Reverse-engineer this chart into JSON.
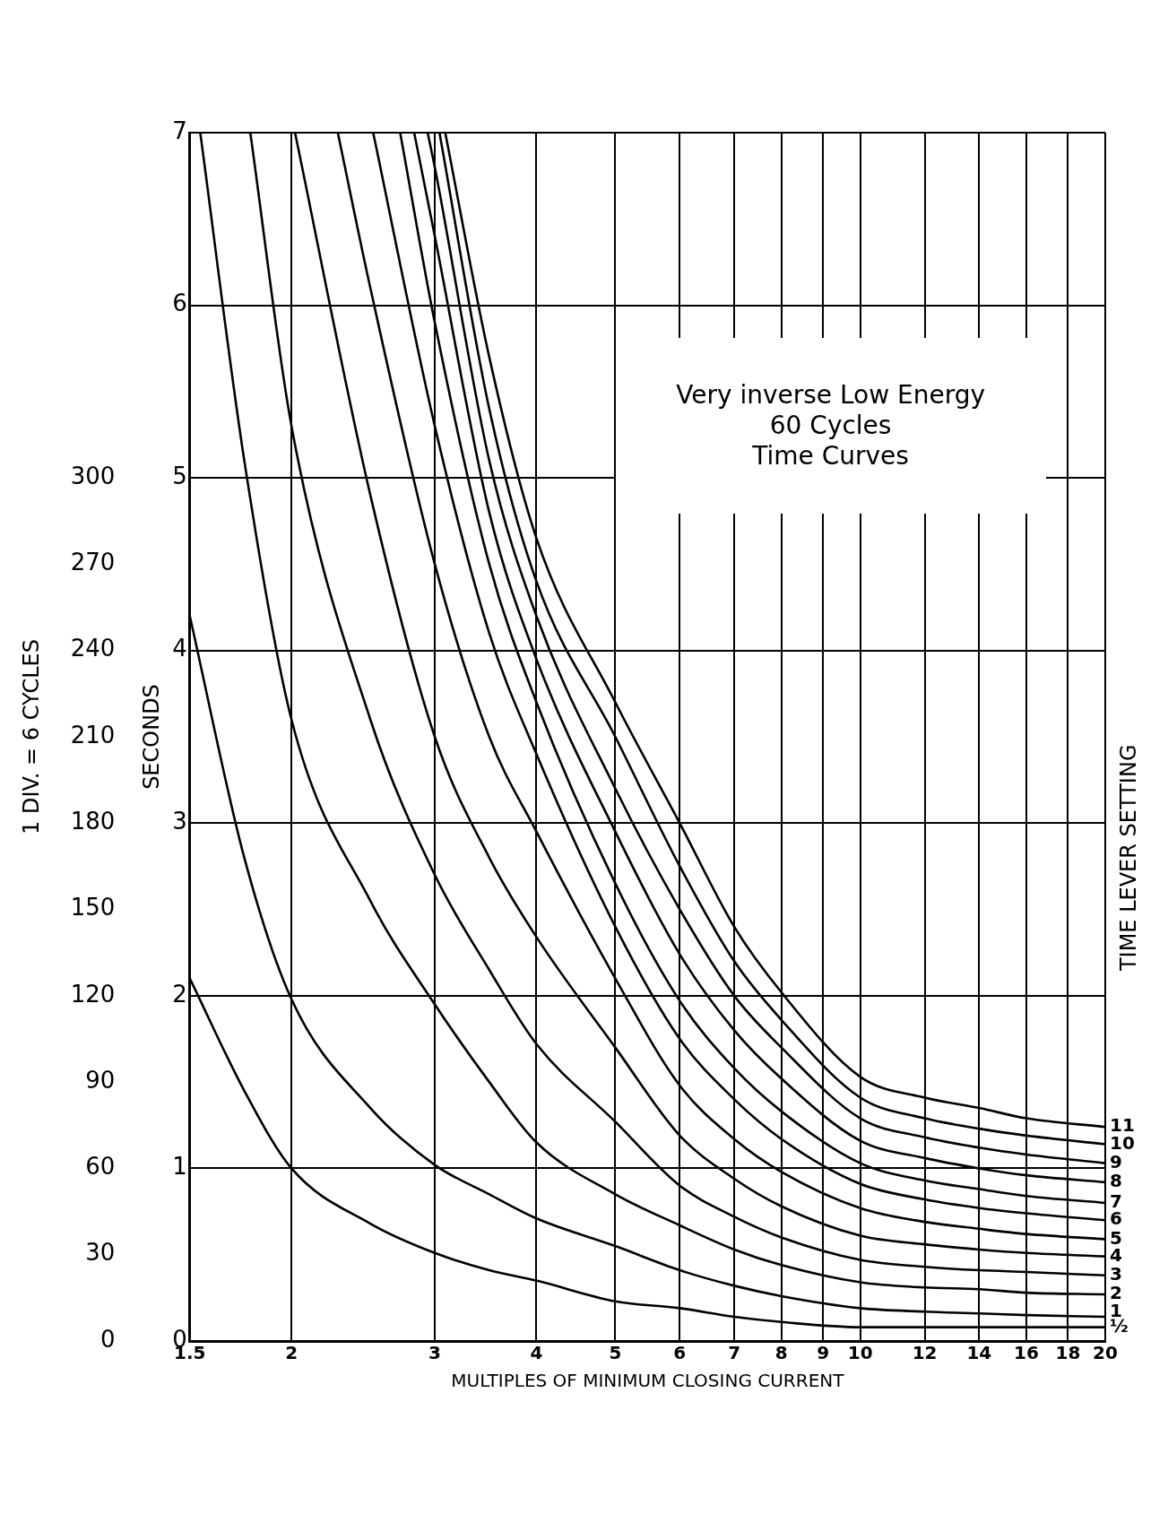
{
  "chart_data": {
    "type": "line",
    "title": "Very inverse   Low Energy",
    "subtitle": "60 Cycles",
    "xlabel": "MULTIPLES OF MINIMUM CLOSING CURRENT",
    "ylabel": "SECONDS",
    "y2label": "1 DIV. = 6 CYCLES",
    "annotations": [
      "Time Curves",
      "TIME LEVER SETTING"
    ],
    "log": "x",
    "xlim": [
      1.5,
      20
    ],
    "xticks": [
      1.5,
      2,
      3,
      4,
      5,
      6,
      7,
      8,
      9,
      10,
      12,
      14,
      16,
      18,
      20
    ],
    "ylim": [
      0,
      7
    ],
    "yticks": [
      0,
      1,
      2,
      3,
      4,
      5,
      6,
      7
    ],
    "y2lim": [
      0,
      420
    ],
    "y2ticks": [
      0,
      30,
      60,
      90,
      120,
      150,
      180,
      210,
      240,
      270,
      300
    ],
    "grid": true,
    "legend": false,
    "marker": "none",
    "line_style": "solid",
    "series": [
      {
        "name": "½",
        "color": "#000000",
        "x": [
          1.5,
          1.75,
          2,
          2.5,
          3,
          3.5,
          4,
          5,
          6,
          7,
          8,
          10,
          12,
          14,
          16,
          20
        ],
        "values": [
          2.1,
          1.45,
          1.0,
          0.68,
          0.51,
          0.41,
          0.35,
          0.23,
          0.19,
          0.14,
          0.11,
          0.08,
          0.08,
          0.08,
          0.08,
          0.08
        ]
      },
      {
        "name": "1",
        "color": "#000000",
        "x": [
          1.5,
          1.75,
          2,
          2.5,
          3,
          3.5,
          4,
          5,
          6,
          7,
          8,
          10,
          12,
          14,
          16,
          20
        ],
        "values": [
          4.2,
          2.8,
          1.98,
          1.35,
          1.02,
          0.85,
          0.71,
          0.55,
          0.41,
          0.32,
          0.26,
          0.19,
          0.17,
          0.16,
          0.15,
          0.14
        ]
      },
      {
        "name": "2",
        "color": "#000000",
        "x": [
          1.545,
          1.75,
          2,
          2.5,
          3,
          3.5,
          4,
          5,
          6,
          7,
          8,
          10,
          12,
          14,
          16,
          20
        ],
        "values": [
          7,
          5.1,
          3.6,
          2.55,
          1.95,
          1.5,
          1.15,
          0.85,
          0.67,
          0.53,
          0.44,
          0.34,
          0.31,
          0.3,
          0.28,
          0.27
        ]
      },
      {
        "name": "3",
        "color": "#000000",
        "x": [
          1.78,
          2,
          2.5,
          3,
          3.5,
          4,
          5,
          6,
          7,
          8,
          10,
          12,
          14,
          16,
          20
        ],
        "values": [
          7,
          5.3,
          3.6,
          2.7,
          2.15,
          1.72,
          1.27,
          0.9,
          0.72,
          0.6,
          0.47,
          0.43,
          0.41,
          0.4,
          0.38
        ]
      },
      {
        "name": "4",
        "color": "#000000",
        "x": [
          2.02,
          2.5,
          3,
          3.5,
          4,
          5,
          6,
          7,
          8,
          10,
          12,
          14,
          16,
          20
        ],
        "values": [
          7,
          4.9,
          3.5,
          2.8,
          2.34,
          1.7,
          1.19,
          0.94,
          0.78,
          0.61,
          0.56,
          0.53,
          0.51,
          0.49
        ]
      },
      {
        "name": "5",
        "color": "#000000",
        "x": [
          2.28,
          2.5,
          3,
          3.5,
          4,
          5,
          6,
          7,
          8,
          10,
          12,
          14,
          16,
          20
        ],
        "values": [
          7,
          6.1,
          4.5,
          3.5,
          2.95,
          2.1,
          1.48,
          1.17,
          0.98,
          0.77,
          0.69,
          0.65,
          0.62,
          0.59
        ]
      },
      {
        "name": "6",
        "color": "#000000",
        "x": [
          2.52,
          3,
          3.5,
          4,
          5,
          6,
          7,
          8,
          10,
          12,
          14,
          16,
          20
        ],
        "values": [
          7,
          5.3,
          4.1,
          3.4,
          2.4,
          1.75,
          1.4,
          1.17,
          0.91,
          0.82,
          0.77,
          0.74,
          0.7
        ]
      },
      {
        "name": "7",
        "color": "#000000",
        "x": [
          2.72,
          3,
          3.5,
          4,
          5,
          6,
          7,
          8,
          10,
          12,
          14,
          16,
          20
        ],
        "values": [
          7,
          5.9,
          4.5,
          3.7,
          2.65,
          1.97,
          1.58,
          1.33,
          1.03,
          0.93,
          0.88,
          0.84,
          0.8
        ]
      },
      {
        "name": "8",
        "color": "#000000",
        "x": [
          2.83,
          3,
          3.5,
          4,
          5,
          6,
          7,
          8,
          10,
          12,
          14,
          16,
          20
        ],
        "values": [
          7,
          6.4,
          4.8,
          3.95,
          2.95,
          2.24,
          1.8,
          1.52,
          1.16,
          1.06,
          1.0,
          0.96,
          0.92
        ]
      },
      {
        "name": "9",
        "color": "#000000",
        "x": [
          2.94,
          3,
          3.5,
          4,
          5,
          6,
          7,
          8,
          10,
          12,
          14,
          16,
          20
        ],
        "values": [
          7,
          6.8,
          5.1,
          4.2,
          3.2,
          2.5,
          2.0,
          1.7,
          1.29,
          1.18,
          1.12,
          1.08,
          1.03
        ]
      },
      {
        "name": "10",
        "color": "#000000",
        "x": [
          3.04,
          3.5,
          4,
          5,
          6,
          7,
          8,
          10,
          12,
          14,
          16,
          20
        ],
        "values": [
          7,
          5.4,
          4.4,
          3.5,
          2.75,
          2.2,
          1.86,
          1.41,
          1.29,
          1.23,
          1.19,
          1.14
        ]
      },
      {
        "name": "11",
        "color": "#000000",
        "x": [
          3.09,
          3.5,
          4,
          5,
          6,
          7,
          8,
          10,
          12,
          14,
          16,
          20
        ],
        "values": [
          7,
          5.7,
          4.65,
          3.7,
          3.0,
          2.4,
          2.02,
          1.53,
          1.41,
          1.35,
          1.29,
          1.24
        ]
      }
    ]
  }
}
